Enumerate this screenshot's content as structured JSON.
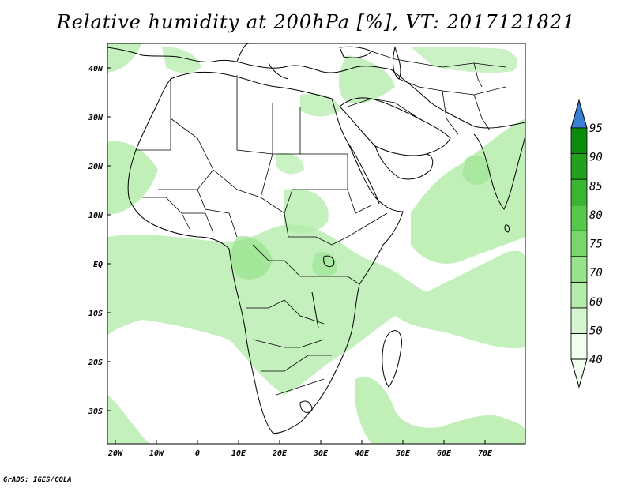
{
  "title": "Relative humidity at 200hPa [%], VT: 2017121821",
  "credit": "GrADS: IGES/COLA",
  "map": {
    "lon_range": [
      -22,
      80
    ],
    "lat_range": [
      -37,
      45
    ],
    "lon_ticks": [
      "20W",
      "10W",
      "0",
      "10E",
      "20E",
      "30E",
      "40E",
      "50E",
      "60E",
      "70E"
    ],
    "lat_ticks": [
      "40N",
      "30N",
      "20N",
      "10N",
      "EQ",
      "10S",
      "20S",
      "30S"
    ]
  },
  "colorbar": {
    "levels": [
      "40",
      "50",
      "60",
      "70",
      "75",
      "80",
      "85",
      "90",
      "95"
    ],
    "colors": [
      "#f0fff0",
      "#d4f5d0",
      "#b5ecac",
      "#98e28c",
      "#78d66a",
      "#56c84a",
      "#39b532",
      "#22a01e",
      "#0a8c0a"
    ],
    "overflow_color": "#3a7fd6"
  }
}
